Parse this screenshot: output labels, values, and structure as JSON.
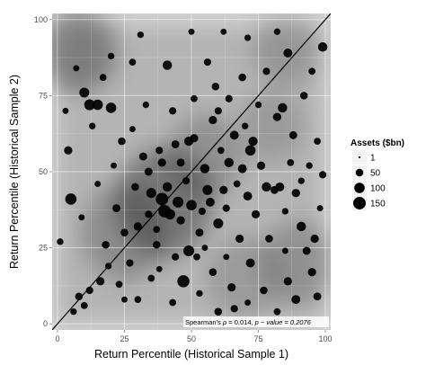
{
  "chart_data": {
    "type": "scatter",
    "xlabel": "Return Percentile (Historical Sample 1)",
    "ylabel": "Return Percentile (Historical Sample 2)",
    "xlim": [
      -2,
      102
    ],
    "ylim": [
      -2,
      102
    ],
    "x_ticks": [
      "0",
      "25",
      "50",
      "75",
      "100"
    ],
    "y_ticks": [
      "0",
      "25",
      "50",
      "75",
      "100"
    ],
    "grid": true,
    "legend": {
      "title": "Assets ($bn)",
      "placement": "right",
      "entries": [
        {
          "label": "1",
          "size": 1
        },
        {
          "label": "50",
          "size": 50
        },
        {
          "label": "100",
          "size": 100
        },
        {
          "label": "150",
          "size": 150
        }
      ]
    },
    "reference_line": {
      "from": [
        -2,
        -2
      ],
      "to": [
        102,
        102
      ]
    },
    "annotation": {
      "prefix": "Spearman's ",
      "rho": "ρ",
      "middle": " = 0.014, ",
      "p": "p",
      "suffix": " − value = 0.2076"
    },
    "density_hotspots": [
      {
        "x": 8,
        "y": 90,
        "strength": 0.55,
        "spread": 14
      },
      {
        "x": 40,
        "y": 40,
        "strength": 0.6,
        "spread": 18
      },
      {
        "x": 25,
        "y": 30,
        "strength": 0.4,
        "spread": 16
      },
      {
        "x": 55,
        "y": 55,
        "strength": 0.35,
        "spread": 14
      },
      {
        "x": 85,
        "y": 90,
        "strength": 0.3,
        "spread": 12
      },
      {
        "x": 90,
        "y": 20,
        "strength": 0.35,
        "spread": 14
      },
      {
        "x": 70,
        "y": 15,
        "strength": 0.25,
        "spread": 14
      },
      {
        "x": 80,
        "y": 65,
        "strength": 0.25,
        "spread": 12
      }
    ],
    "points": [
      [
        39,
        41,
        150
      ],
      [
        40,
        37,
        150
      ],
      [
        47,
        14,
        140
      ],
      [
        5,
        41,
        120
      ],
      [
        12,
        72,
        110
      ],
      [
        20,
        71,
        100
      ],
      [
        15,
        72,
        100
      ],
      [
        10,
        76,
        90
      ],
      [
        45,
        40,
        110
      ],
      [
        50,
        39,
        100
      ],
      [
        42,
        36,
        100
      ],
      [
        35,
        43,
        90
      ],
      [
        49,
        24,
        110
      ],
      [
        41,
        45,
        80
      ],
      [
        56,
        44,
        90
      ],
      [
        55,
        51,
        80
      ],
      [
        60,
        33,
        90
      ],
      [
        64,
        53,
        80
      ],
      [
        72,
        57,
        100
      ],
      [
        84,
        71,
        80
      ],
      [
        78,
        45,
        80
      ],
      [
        73,
        60,
        75
      ],
      [
        49,
        60,
        75
      ],
      [
        66,
        62,
        70
      ],
      [
        69,
        51,
        70
      ],
      [
        99,
        91,
        80
      ],
      [
        86,
        89,
        70
      ],
      [
        82,
        68,
        60
      ],
      [
        71,
        42,
        70
      ],
      [
        83,
        45,
        70
      ],
      [
        89,
        43,
        60
      ],
      [
        57,
        40,
        70
      ],
      [
        62,
        44,
        60
      ],
      [
        58,
        67,
        60
      ],
      [
        51,
        61,
        60
      ],
      [
        46,
        53,
        55
      ],
      [
        39,
        53,
        60
      ],
      [
        34,
        50,
        55
      ],
      [
        32,
        55,
        55
      ],
      [
        29,
        45,
        50
      ],
      [
        44,
        59,
        55
      ],
      [
        24,
        60,
        50
      ],
      [
        38,
        57,
        45
      ],
      [
        30,
        32,
        60
      ],
      [
        25,
        30,
        50
      ],
      [
        22,
        38,
        55
      ],
      [
        18,
        26,
        50
      ],
      [
        16,
        14,
        60
      ],
      [
        23,
        13,
        40
      ],
      [
        8,
        9,
        50
      ],
      [
        12,
        11,
        45
      ],
      [
        10,
        6,
        40
      ],
      [
        6,
        4,
        35
      ],
      [
        1,
        27,
        35
      ],
      [
        4,
        57,
        60
      ],
      [
        41,
        85,
        80
      ],
      [
        35,
        15,
        40
      ],
      [
        58,
        17,
        50
      ],
      [
        65,
        12,
        60
      ],
      [
        60,
        4,
        50
      ],
      [
        72,
        20,
        70
      ],
      [
        68,
        28,
        60
      ],
      [
        77,
        11,
        50
      ],
      [
        79,
        28,
        50
      ],
      [
        86,
        14,
        60
      ],
      [
        91,
        32,
        80
      ],
      [
        95,
        17,
        60
      ],
      [
        96,
        28,
        60
      ],
      [
        89,
        8,
        70
      ],
      [
        93,
        24,
        55
      ],
      [
        74,
        36,
        60
      ],
      [
        81,
        44,
        55
      ],
      [
        76,
        52,
        60
      ],
      [
        88,
        62,
        55
      ],
      [
        92,
        75,
        50
      ],
      [
        59,
        78,
        50
      ],
      [
        69,
        81,
        50
      ],
      [
        56,
        86,
        45
      ],
      [
        64,
        74,
        45
      ],
      [
        78,
        83,
        45
      ],
      [
        28,
        86,
        40
      ],
      [
        31,
        95,
        35
      ],
      [
        17,
        81,
        40
      ],
      [
        33,
        72,
        35
      ],
      [
        20,
        88,
        35
      ],
      [
        43,
        70,
        45
      ],
      [
        51,
        74,
        40
      ],
      [
        60,
        70,
        45
      ],
      [
        46,
        34,
        60
      ],
      [
        53,
        30,
        55
      ],
      [
        37,
        26,
        50
      ],
      [
        44,
        22,
        45
      ],
      [
        52,
        22,
        40
      ],
      [
        27,
        20,
        45
      ],
      [
        30,
        8,
        40
      ],
      [
        43,
        7,
        40
      ],
      [
        53,
        10,
        35
      ],
      [
        66,
        5,
        45
      ],
      [
        82,
        4,
        40
      ],
      [
        97,
        9,
        55
      ],
      [
        99,
        49,
        45
      ],
      [
        97,
        60,
        40
      ],
      [
        95,
        83,
        40
      ],
      [
        82,
        96,
        35
      ],
      [
        71,
        94,
        35
      ],
      [
        62,
        96,
        30
      ],
      [
        50,
        96,
        30
      ],
      [
        13,
        65,
        35
      ],
      [
        7,
        84,
        30
      ],
      [
        3,
        70,
        30
      ],
      [
        34,
        36,
        45
      ],
      [
        37,
        31,
        40
      ],
      [
        48,
        47,
        45
      ],
      [
        54,
        37,
        45
      ],
      [
        63,
        38,
        45
      ],
      [
        67,
        46,
        40
      ],
      [
        61,
        57,
        40
      ],
      [
        70,
        65,
        35
      ],
      [
        75,
        72,
        35
      ],
      [
        87,
        53,
        40
      ],
      [
        85,
        37,
        35
      ],
      [
        91,
        47,
        35
      ],
      [
        94,
        52,
        35
      ],
      [
        28,
        64,
        30
      ],
      [
        21,
        52,
        30
      ],
      [
        15,
        46,
        30
      ],
      [
        9,
        35,
        30
      ],
      [
        19,
        19,
        35
      ],
      [
        25,
        8,
        30
      ],
      [
        38,
        18,
        30
      ],
      [
        55,
        25,
        30
      ],
      [
        63,
        22,
        30
      ],
      [
        71,
        7,
        30
      ],
      [
        85,
        24,
        30
      ],
      [
        98,
        38,
        30
      ]
    ]
  }
}
